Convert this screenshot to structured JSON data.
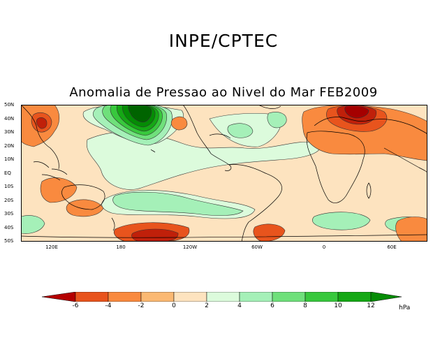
{
  "header": {
    "organization": "INPE/CPTEC",
    "title": "Anomalia de Pressao ao Nivel do Mar FEB2009"
  },
  "map": {
    "latitude_labels": [
      "50N",
      "40N",
      "30N",
      "20N",
      "10N",
      "EQ",
      "10S",
      "20S",
      "30S",
      "40S",
      "50S"
    ],
    "longitude_labels": [
      "120E",
      "180",
      "120W",
      "60W",
      "0",
      "60E"
    ],
    "colors": {
      "neg6": "#a50000",
      "neg4": "#e8541d",
      "neg2": "#f79a4f",
      "neg0": "#fde3bf",
      "pos0": "#dcfbdc",
      "pos2": "#a5f0b8",
      "pos4": "#6fe07b",
      "pos6": "#38c83d",
      "pos8": "#15a815",
      "pos10": "#058c05",
      "pos12": "#006400"
    }
  },
  "colorbar": {
    "labels": [
      "-6",
      "-4",
      "-2",
      "0",
      "2",
      "4",
      "6",
      "8",
      "10",
      "12"
    ],
    "unit": "hPa",
    "colors": [
      "#b40000",
      "#e8541d",
      "#f98a3f",
      "#fbb973",
      "#fde3bf",
      "#dcfbdc",
      "#a5f0b8",
      "#6fe07b",
      "#38c83d",
      "#15a815",
      "#058c05"
    ]
  }
}
